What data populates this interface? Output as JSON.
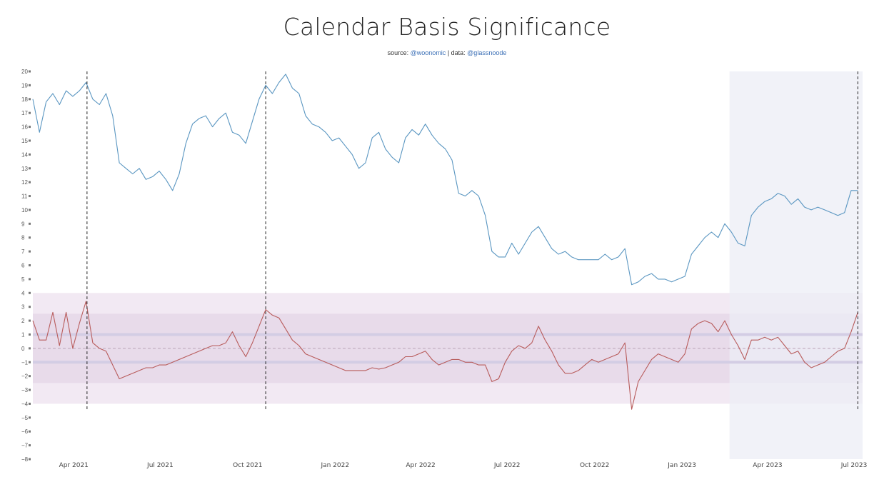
{
  "title": "Calendar Basis Significance",
  "subtitle": {
    "prefix": "source: ",
    "source": "@woonomic",
    "separator": " | data: ",
    "data": "@glassnoode"
  },
  "colors": {
    "basis_line": "#5a96c1",
    "significance_line": "#b85c5c",
    "outer_band": "#f2e9f3",
    "inner_band": "#e8dbea",
    "mean_line": "#d3cde4",
    "highlight": "#eceef5"
  },
  "chart_data": {
    "type": "line",
    "ylim": [
      -8,
      20
    ],
    "yticks": [
      20,
      19,
      18,
      17,
      16,
      15,
      14,
      13,
      12,
      11,
      10,
      9,
      8,
      7,
      6,
      5,
      4,
      3,
      2,
      1,
      0,
      -1,
      -2,
      -3,
      -4,
      -5,
      -6,
      -7,
      -8
    ],
    "xticks": [
      "Apr 2021",
      "Jul 2021",
      "Oct 2021",
      "Jan 2022",
      "Apr 2022",
      "Jul 2022",
      "Oct 2022",
      "Jan 2023",
      "Apr 2023",
      "Jul 2023"
    ],
    "xrange": [
      "2021-02-17",
      "2023-07-10"
    ],
    "bands": {
      "outer": [
        -4,
        4
      ],
      "inner": [
        -2.5,
        2.5
      ],
      "lines": [
        1,
        -1
      ],
      "zero": 0
    },
    "highlight_range": [
      "2023-02-20",
      "2023-07-10"
    ],
    "vlines": [
      "2021-04-15",
      "2021-10-20",
      "2023-07-05"
    ],
    "series": [
      {
        "key": "basis",
        "x": [
          "2021-02-17",
          "2021-02-24",
          "2021-03-03",
          "2021-03-10",
          "2021-03-17",
          "2021-03-24",
          "2021-03-31",
          "2021-04-07",
          "2021-04-14",
          "2021-04-21",
          "2021-04-28",
          "2021-05-05",
          "2021-05-12",
          "2021-05-19",
          "2021-05-26",
          "2021-06-02",
          "2021-06-09",
          "2021-06-16",
          "2021-06-23",
          "2021-06-30",
          "2021-07-07",
          "2021-07-14",
          "2021-07-21",
          "2021-07-28",
          "2021-08-04",
          "2021-08-11",
          "2021-08-18",
          "2021-08-25",
          "2021-09-01",
          "2021-09-08",
          "2021-09-15",
          "2021-09-22",
          "2021-09-29",
          "2021-10-06",
          "2021-10-13",
          "2021-10-20",
          "2021-10-27",
          "2021-11-03",
          "2021-11-10",
          "2021-11-17",
          "2021-11-24",
          "2021-12-01",
          "2021-12-08",
          "2021-12-15",
          "2021-12-22",
          "2021-12-29",
          "2022-01-05",
          "2022-01-12",
          "2022-01-19",
          "2022-01-26",
          "2022-02-02",
          "2022-02-09",
          "2022-02-16",
          "2022-02-23",
          "2022-03-02",
          "2022-03-09",
          "2022-03-16",
          "2022-03-23",
          "2022-03-30",
          "2022-04-06",
          "2022-04-13",
          "2022-04-20",
          "2022-04-27",
          "2022-05-04",
          "2022-05-11",
          "2022-05-18",
          "2022-05-25",
          "2022-06-01",
          "2022-06-08",
          "2022-06-15",
          "2022-06-22",
          "2022-06-29",
          "2022-07-06",
          "2022-07-13",
          "2022-07-20",
          "2022-07-27",
          "2022-08-03",
          "2022-08-10",
          "2022-08-17",
          "2022-08-24",
          "2022-08-31",
          "2022-09-07",
          "2022-09-14",
          "2022-09-21",
          "2022-09-28",
          "2022-10-05",
          "2022-10-12",
          "2022-10-19",
          "2022-10-26",
          "2022-11-02",
          "2022-11-09",
          "2022-11-16",
          "2022-11-23",
          "2022-11-30",
          "2022-12-07",
          "2022-12-14",
          "2022-12-21",
          "2022-12-28",
          "2023-01-04",
          "2023-01-11",
          "2023-01-18",
          "2023-01-25",
          "2023-02-01",
          "2023-02-08",
          "2023-02-15",
          "2023-02-22",
          "2023-03-01",
          "2023-03-08",
          "2023-03-15",
          "2023-03-22",
          "2023-03-29",
          "2023-04-05",
          "2023-04-12",
          "2023-04-19",
          "2023-04-26",
          "2023-05-03",
          "2023-05-10",
          "2023-05-17",
          "2023-05-24",
          "2023-05-31",
          "2023-06-07",
          "2023-06-14",
          "2023-06-21",
          "2023-06-28",
          "2023-07-05"
        ],
        "y": [
          18.0,
          15.6,
          17.8,
          18.4,
          17.6,
          18.6,
          18.2,
          18.6,
          19.2,
          18.0,
          17.6,
          18.4,
          16.8,
          13.4,
          13.0,
          12.6,
          13.0,
          12.2,
          12.4,
          12.8,
          12.2,
          11.4,
          12.6,
          14.8,
          16.2,
          16.6,
          16.8,
          16.0,
          16.6,
          17.0,
          15.6,
          15.4,
          14.8,
          16.4,
          18.0,
          19.0,
          18.4,
          19.2,
          19.8,
          18.8,
          18.4,
          16.8,
          16.2,
          16.0,
          15.6,
          15.0,
          15.2,
          14.6,
          14.0,
          13.0,
          13.4,
          15.2,
          15.6,
          14.4,
          13.8,
          13.4,
          15.2,
          15.8,
          15.4,
          16.2,
          15.4,
          14.8,
          14.4,
          13.6,
          11.2,
          11.0,
          11.4,
          11.0,
          9.6,
          7.0,
          6.6,
          6.6,
          7.6,
          6.8,
          7.6,
          8.4,
          8.8,
          8.0,
          7.2,
          6.8,
          7.0,
          6.6,
          6.4,
          6.4,
          6.4,
          6.4,
          6.8,
          6.4,
          6.6,
          7.2,
          4.6,
          4.8,
          5.2,
          5.4,
          5.0,
          5.0,
          4.8,
          5.0,
          5.2,
          6.8,
          7.4,
          8.0,
          8.4,
          8.0,
          9.0,
          8.4,
          7.6,
          7.4,
          9.6,
          10.2,
          10.6,
          10.8,
          11.2,
          11.0,
          10.4,
          10.8,
          10.2,
          10.0,
          10.2,
          10.0,
          9.8,
          9.6,
          9.8,
          11.4,
          11.4
        ]
      },
      {
        "key": "significance",
        "x": [
          "2021-02-17",
          "2021-02-24",
          "2021-03-03",
          "2021-03-10",
          "2021-03-17",
          "2021-03-24",
          "2021-03-31",
          "2021-04-07",
          "2021-04-14",
          "2021-04-21",
          "2021-04-28",
          "2021-05-05",
          "2021-05-12",
          "2021-05-19",
          "2021-05-26",
          "2021-06-02",
          "2021-06-09",
          "2021-06-16",
          "2021-06-23",
          "2021-06-30",
          "2021-07-07",
          "2021-07-14",
          "2021-07-21",
          "2021-07-28",
          "2021-08-04",
          "2021-08-11",
          "2021-08-18",
          "2021-08-25",
          "2021-09-01",
          "2021-09-08",
          "2021-09-15",
          "2021-09-22",
          "2021-09-29",
          "2021-10-06",
          "2021-10-13",
          "2021-10-20",
          "2021-10-27",
          "2021-11-03",
          "2021-11-10",
          "2021-11-17",
          "2021-11-24",
          "2021-12-01",
          "2021-12-08",
          "2021-12-15",
          "2021-12-22",
          "2021-12-29",
          "2022-01-05",
          "2022-01-12",
          "2022-01-19",
          "2022-01-26",
          "2022-02-02",
          "2022-02-09",
          "2022-02-16",
          "2022-02-23",
          "2022-03-02",
          "2022-03-09",
          "2022-03-16",
          "2022-03-23",
          "2022-03-30",
          "2022-04-06",
          "2022-04-13",
          "2022-04-20",
          "2022-04-27",
          "2022-05-04",
          "2022-05-11",
          "2022-05-18",
          "2022-05-25",
          "2022-06-01",
          "2022-06-08",
          "2022-06-15",
          "2022-06-22",
          "2022-06-29",
          "2022-07-06",
          "2022-07-13",
          "2022-07-20",
          "2022-07-27",
          "2022-08-03",
          "2022-08-10",
          "2022-08-17",
          "2022-08-24",
          "2022-08-31",
          "2022-09-07",
          "2022-09-14",
          "2022-09-21",
          "2022-09-28",
          "2022-10-05",
          "2022-10-12",
          "2022-10-19",
          "2022-10-26",
          "2022-11-02",
          "2022-11-09",
          "2022-11-16",
          "2022-11-23",
          "2022-11-30",
          "2022-12-07",
          "2022-12-14",
          "2022-12-21",
          "2022-12-28",
          "2023-01-04",
          "2023-01-11",
          "2023-01-18",
          "2023-01-25",
          "2023-02-01",
          "2023-02-08",
          "2023-02-15",
          "2023-02-22",
          "2023-03-01",
          "2023-03-08",
          "2023-03-15",
          "2023-03-22",
          "2023-03-29",
          "2023-04-05",
          "2023-04-12",
          "2023-04-19",
          "2023-04-26",
          "2023-05-03",
          "2023-05-10",
          "2023-05-17",
          "2023-05-24",
          "2023-05-31",
          "2023-06-07",
          "2023-06-14",
          "2023-06-21",
          "2023-06-28",
          "2023-07-05"
        ],
        "y": [
          2.0,
          0.6,
          0.6,
          2.6,
          0.2,
          2.6,
          0.0,
          1.8,
          3.4,
          0.4,
          0.0,
          -0.2,
          -1.2,
          -2.2,
          -2.0,
          -1.8,
          -1.6,
          -1.4,
          -1.4,
          -1.2,
          -1.2,
          -1.0,
          -0.8,
          -0.6,
          -0.4,
          -0.2,
          0.0,
          0.2,
          0.2,
          0.4,
          1.2,
          0.2,
          -0.6,
          0.4,
          1.6,
          2.8,
          2.4,
          2.2,
          1.4,
          0.6,
          0.2,
          -0.4,
          -0.6,
          -0.8,
          -1.0,
          -1.2,
          -1.4,
          -1.6,
          -1.6,
          -1.6,
          -1.6,
          -1.4,
          -1.5,
          -1.4,
          -1.2,
          -1.0,
          -0.6,
          -0.6,
          -0.4,
          -0.2,
          -0.8,
          -1.2,
          -1.0,
          -0.8,
          -0.8,
          -1.0,
          -1.0,
          -1.2,
          -1.2,
          -2.4,
          -2.2,
          -1.0,
          -0.2,
          0.2,
          0.0,
          0.4,
          1.6,
          0.6,
          -0.2,
          -1.2,
          -1.8,
          -1.8,
          -1.6,
          -1.2,
          -0.8,
          -1.0,
          -0.8,
          -0.6,
          -0.4,
          0.4,
          -4.4,
          -2.4,
          -1.6,
          -0.8,
          -0.4,
          -0.6,
          -0.8,
          -1.0,
          -0.4,
          1.4,
          1.8,
          2.0,
          1.8,
          1.2,
          2.0,
          1.0,
          0.2,
          -0.8,
          0.6,
          0.6,
          0.8,
          0.6,
          0.8,
          0.2,
          -0.4,
          -0.2,
          -1.0,
          -1.4,
          -1.2,
          -1.0,
          -0.6,
          -0.2,
          0.0,
          1.2,
          2.6
        ]
      }
    ]
  }
}
